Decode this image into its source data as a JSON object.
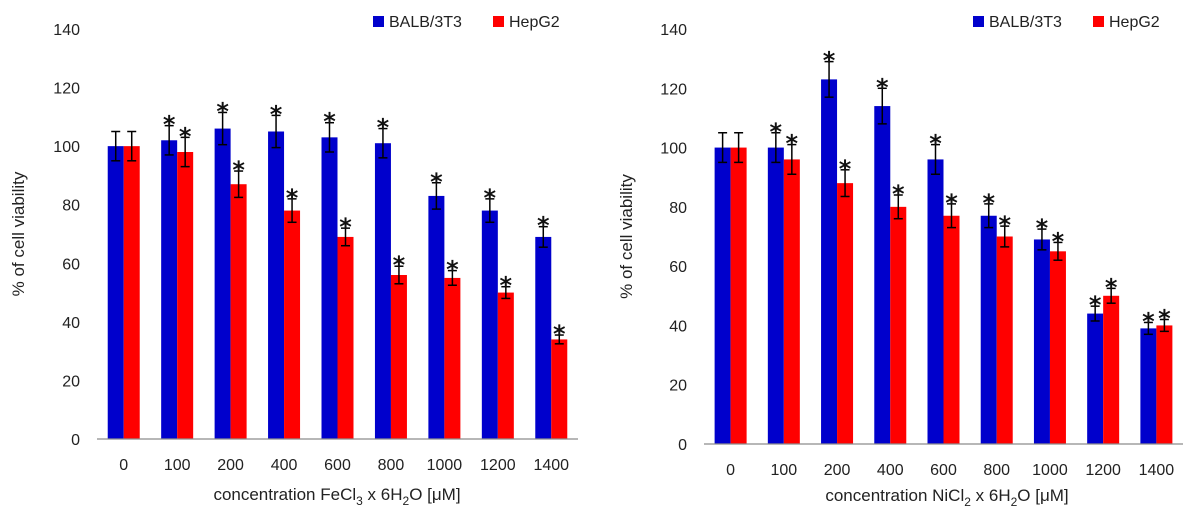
{
  "chart_data": [
    {
      "type": "bar",
      "categories": [
        "0",
        "100",
        "200",
        "400",
        "600",
        "800",
        "1000",
        "1200",
        "1400"
      ],
      "series": [
        {
          "name": "BALB/3T3",
          "color": "#0000cc",
          "values": [
            100,
            102,
            106,
            105,
            103,
            101,
            83,
            78,
            69
          ],
          "errors": [
            5,
            5,
            5.5,
            5.5,
            5,
            5,
            4.5,
            4,
            3.5
          ],
          "significant": [
            false,
            true,
            true,
            true,
            true,
            true,
            true,
            true,
            true
          ]
        },
        {
          "name": "HepG2",
          "color": "#ff0000",
          "values": [
            100,
            98,
            87,
            78,
            69,
            56,
            55,
            50,
            34
          ],
          "errors": [
            5,
            5,
            4.5,
            4,
            3,
            3,
            2.5,
            2,
            1.5
          ],
          "significant": [
            false,
            true,
            true,
            true,
            true,
            true,
            true,
            true,
            true
          ]
        }
      ],
      "ylim": [
        0,
        140
      ],
      "yticks": [
        0,
        20,
        40,
        60,
        80,
        100,
        120,
        140
      ],
      "ylabel": "% of cell viability",
      "xlabel": {
        "prefix": "concentration FeCl",
        "sub1": "3",
        "mid": " x 6H",
        "sub2": "2",
        "suffix": "O [μM]"
      },
      "significance_marker": "*",
      "legend_position": "top-right"
    },
    {
      "type": "bar",
      "categories": [
        "0",
        "100",
        "200",
        "400",
        "600",
        "800",
        "1000",
        "1200",
        "1400"
      ],
      "series": [
        {
          "name": "BALB/3T3",
          "color": "#0000cc",
          "values": [
            100,
            100,
            123,
            114,
            96,
            77,
            69,
            44,
            39
          ],
          "errors": [
            5,
            5,
            6,
            6,
            5,
            4,
            3.5,
            2.5,
            2
          ],
          "significant": [
            false,
            true,
            true,
            true,
            true,
            true,
            true,
            true,
            true
          ]
        },
        {
          "name": "HepG2",
          "color": "#ff0000",
          "values": [
            100,
            96,
            88,
            80,
            77,
            70,
            65,
            50,
            40
          ],
          "errors": [
            5,
            5,
            4.5,
            4,
            4,
            3.5,
            3,
            2.5,
            2
          ],
          "significant": [
            false,
            true,
            true,
            true,
            true,
            true,
            true,
            true,
            true
          ]
        }
      ],
      "ylim": [
        0,
        140
      ],
      "yticks": [
        0,
        20,
        40,
        60,
        80,
        100,
        120,
        140
      ],
      "ylabel": "% of cell viability",
      "xlabel": {
        "prefix": "concentration NiCl",
        "sub1": "2",
        "mid": " x 6H",
        "sub2": "2",
        "suffix": "O [μM]"
      },
      "significance_marker": "*",
      "legend_position": "top-right"
    }
  ]
}
